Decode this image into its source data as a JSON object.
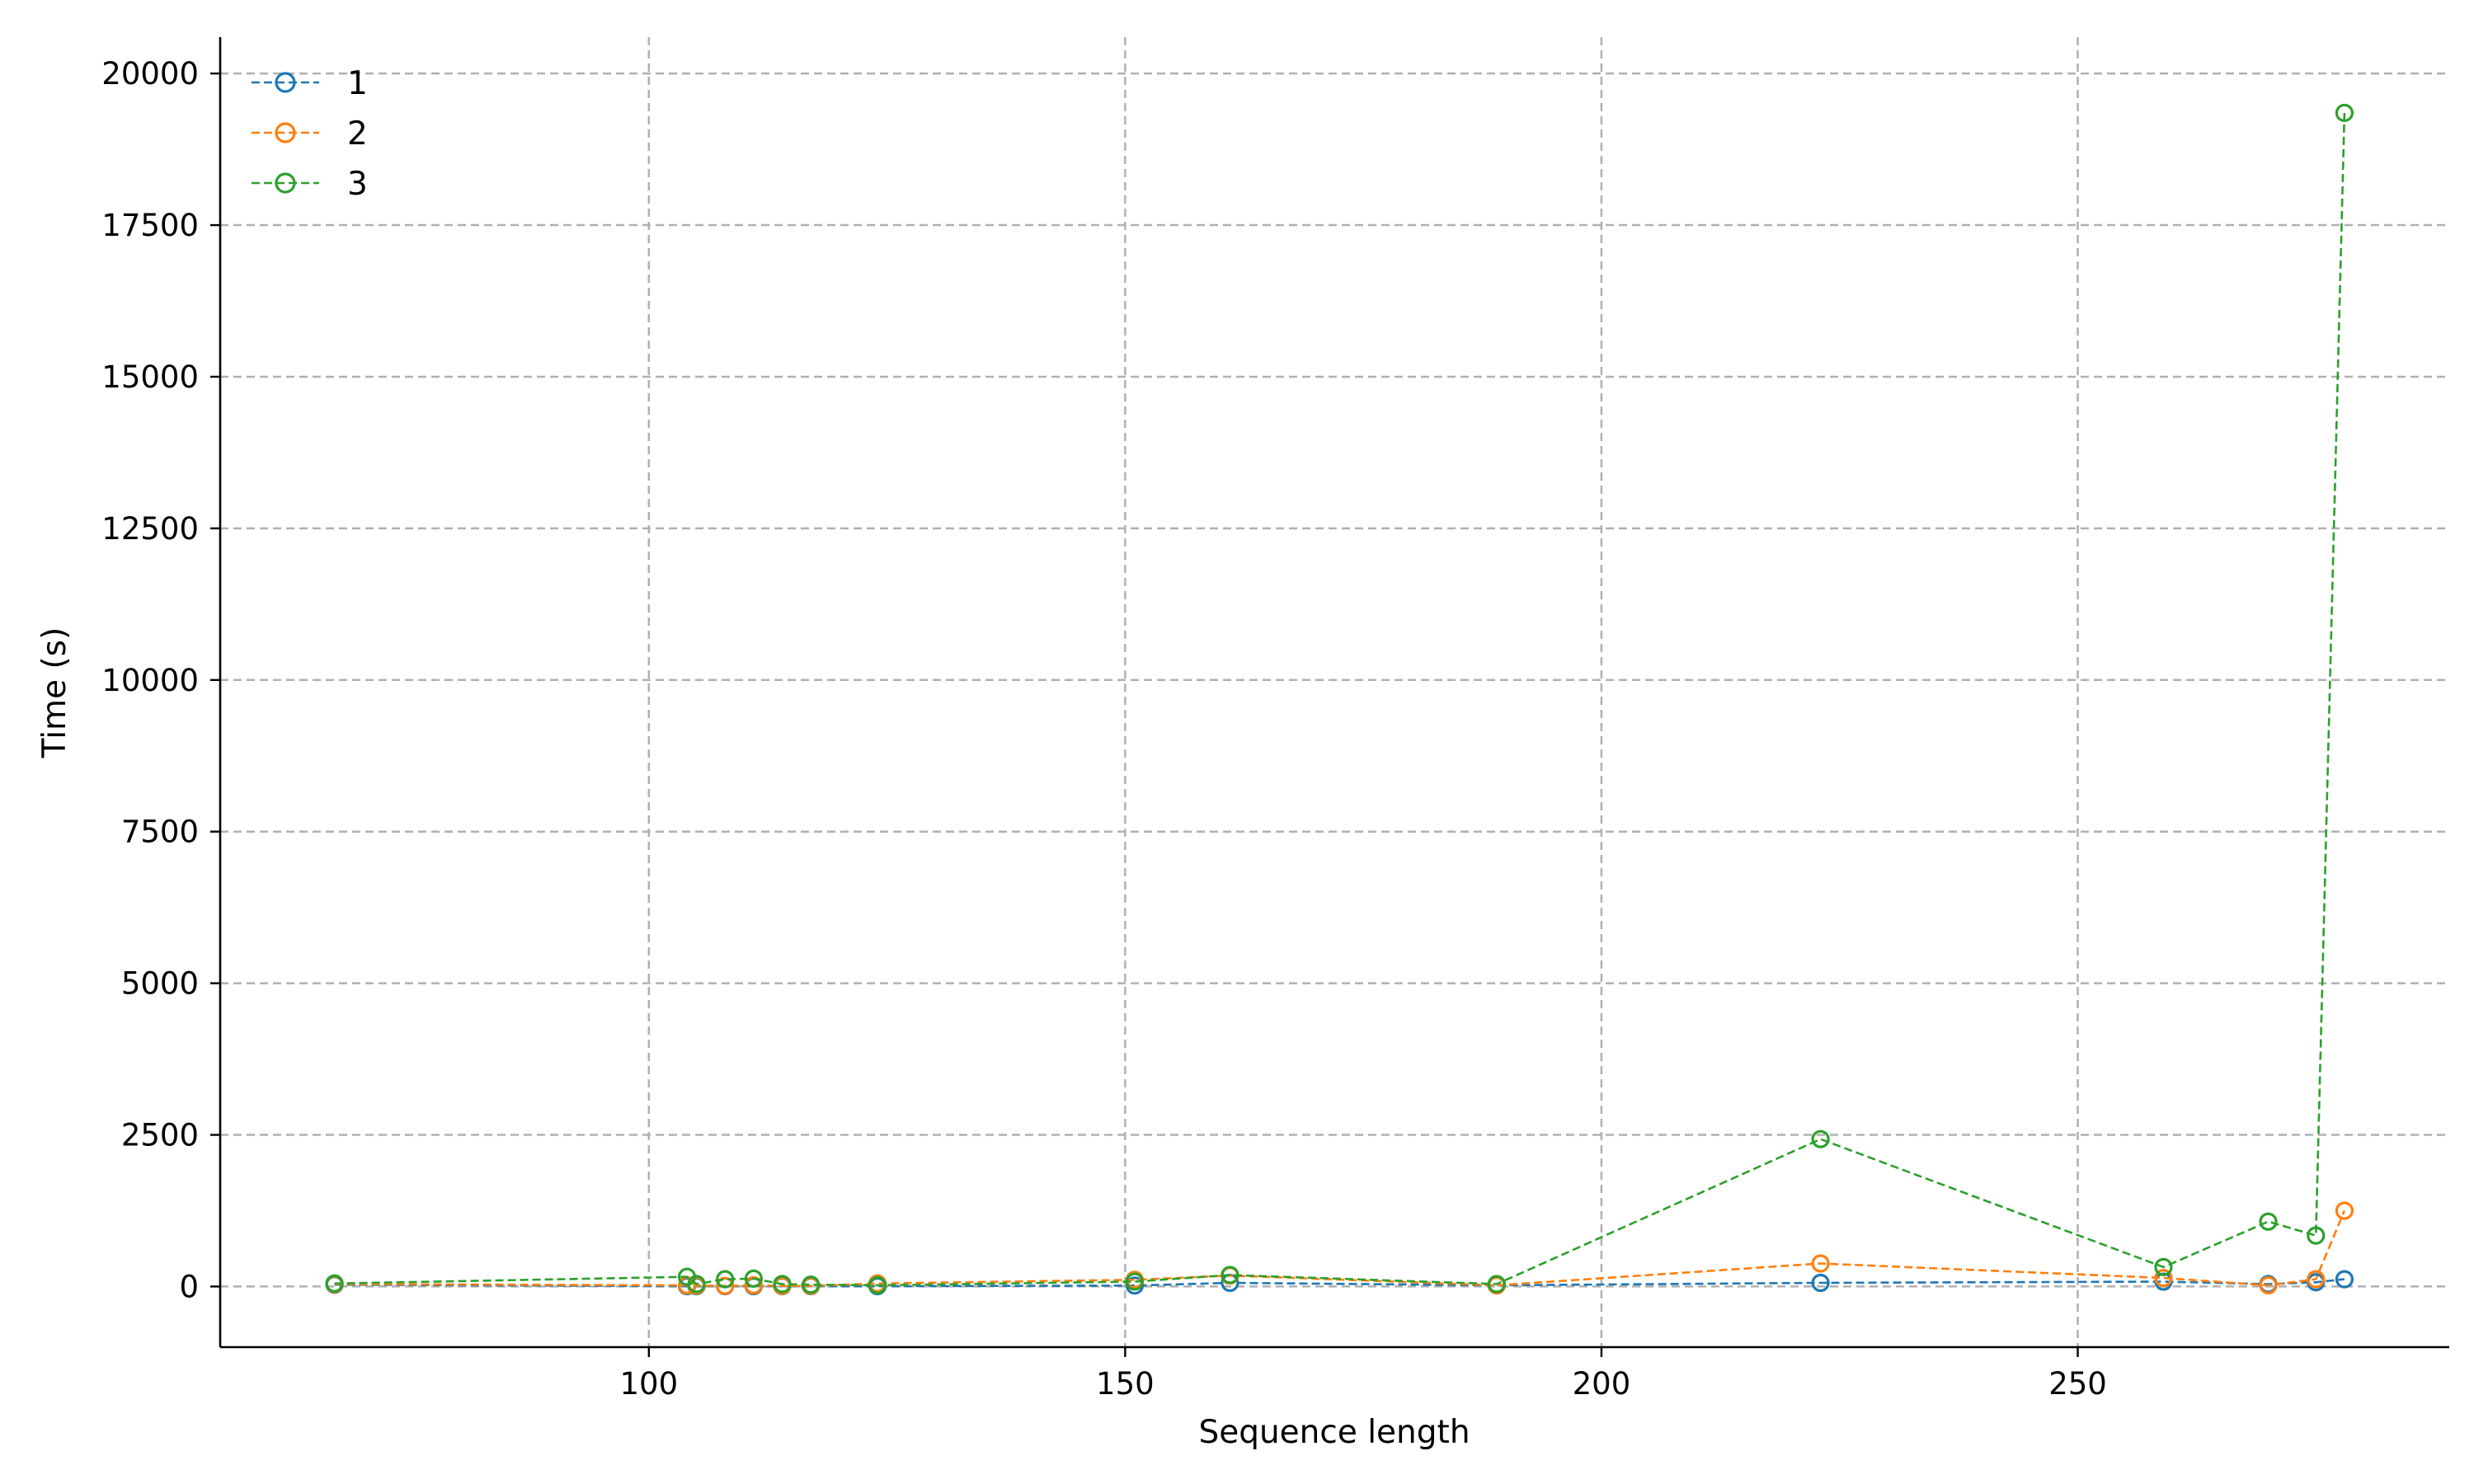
{
  "chart_data": {
    "type": "line",
    "title": "",
    "xlabel": "Sequence length",
    "ylabel": "Time (s)",
    "xlim": [
      55,
      289
    ],
    "ylim": [
      -1000,
      20600
    ],
    "xticks": [
      100,
      150,
      200,
      250
    ],
    "yticks": [
      0,
      2500,
      5000,
      7500,
      10000,
      12500,
      15000,
      17500,
      20000
    ],
    "grid": true,
    "legend_position": "top-left",
    "series": [
      {
        "name": "1",
        "color": "#1f77b4",
        "points": [
          [
            67,
            30
          ],
          [
            104,
            5
          ],
          [
            105,
            5
          ],
          [
            108,
            5
          ],
          [
            111,
            5
          ],
          [
            114,
            5
          ],
          [
            117,
            5
          ],
          [
            124,
            5
          ],
          [
            151,
            15
          ],
          [
            161,
            60
          ],
          [
            189,
            20
          ],
          [
            223,
            60
          ],
          [
            259,
            80
          ],
          [
            270,
            40
          ],
          [
            275,
            70
          ],
          [
            278,
            120
          ]
        ]
      },
      {
        "name": "2",
        "color": "#ff7f0e",
        "points": [
          [
            67,
            40
          ],
          [
            104,
            20
          ],
          [
            105,
            15
          ],
          [
            108,
            10
          ],
          [
            111,
            20
          ],
          [
            114,
            10
          ],
          [
            117,
            10
          ],
          [
            124,
            50
          ],
          [
            151,
            110
          ],
          [
            161,
            180
          ],
          [
            189,
            20
          ],
          [
            223,
            380
          ],
          [
            259,
            140
          ],
          [
            270,
            20
          ],
          [
            275,
            120
          ],
          [
            278,
            1250
          ]
        ]
      },
      {
        "name": "3",
        "color": "#2ca02c",
        "points": [
          [
            67,
            50
          ],
          [
            104,
            160
          ],
          [
            105,
            40
          ],
          [
            108,
            120
          ],
          [
            111,
            130
          ],
          [
            114,
            40
          ],
          [
            117,
            30
          ],
          [
            124,
            20
          ],
          [
            151,
            80
          ],
          [
            161,
            190
          ],
          [
            189,
            40
          ],
          [
            223,
            2430
          ],
          [
            259,
            320
          ],
          [
            270,
            1070
          ],
          [
            275,
            840
          ],
          [
            278,
            19350
          ]
        ]
      }
    ]
  }
}
